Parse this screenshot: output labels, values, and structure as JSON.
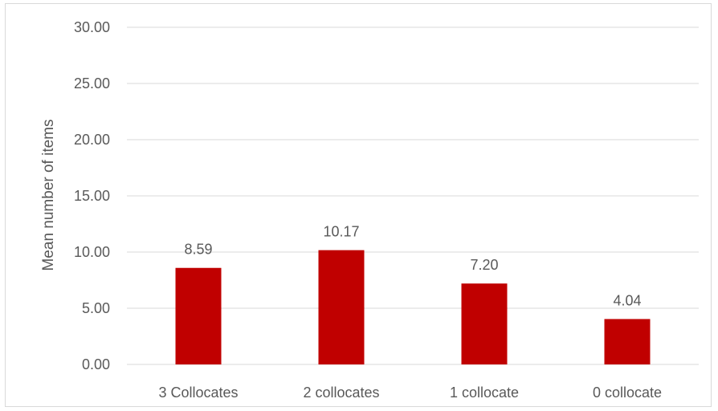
{
  "chart_data": {
    "type": "bar",
    "categories": [
      "3 Collocates",
      "2 collocates",
      "1 collocate",
      "0 collocate"
    ],
    "values": [
      8.59,
      10.17,
      7.2,
      4.04
    ],
    "data_labels": [
      "8.59",
      "10.17",
      "7.20",
      "4.04"
    ],
    "title": "",
    "xlabel": "",
    "ylabel": "Mean number of items",
    "ylim": [
      0,
      30
    ],
    "yticks": [
      0,
      5,
      10,
      15,
      20,
      25,
      30
    ],
    "ytick_labels": [
      "0.00",
      "5.00",
      "10.00",
      "15.00",
      "20.00",
      "25.00",
      "30.00"
    ],
    "grid": true,
    "legend": "none",
    "bar_color": "#c00000",
    "grid_color": "#d9d9d9"
  }
}
